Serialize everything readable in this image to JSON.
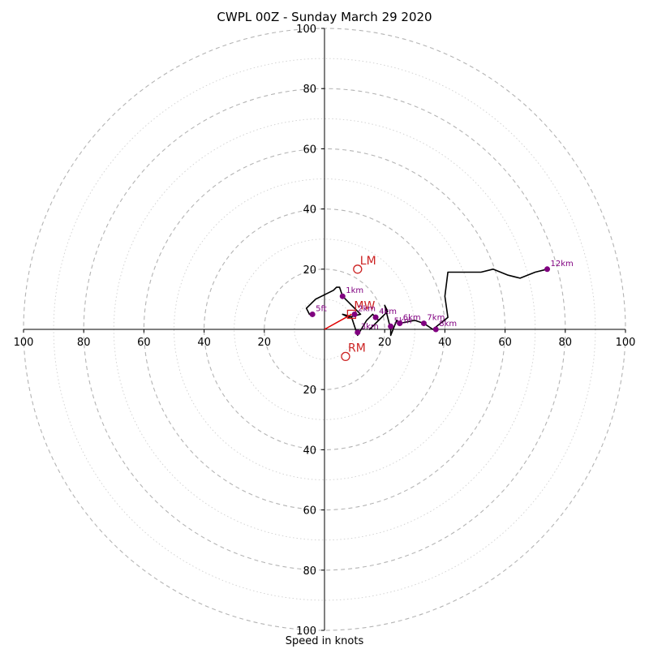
{
  "chart_data": {
    "type": "scatter",
    "chart_kind": "hodograph",
    "title": "CWPL 00Z - Sunday March 29 2020",
    "xlabel": "Speed in knots",
    "ylabel": "",
    "xlim": [
      -100,
      100
    ],
    "ylim": [
      -100,
      100
    ],
    "grid": true,
    "ring_labels": [
      20,
      40,
      60,
      80,
      100
    ],
    "x_tick_labels": [
      "100",
      "80",
      "60",
      "40",
      "20",
      "20",
      "40",
      "60",
      "80",
      "100"
    ],
    "y_tick_labels": [
      "100",
      "80",
      "60",
      "40",
      "20",
      "20",
      "40",
      "60",
      "80",
      "100"
    ],
    "hodograph_line": {
      "color": "#000000",
      "points": [
        [
          -6,
          7
        ],
        [
          -5,
          5
        ],
        [
          -6,
          7
        ],
        [
          -3,
          10
        ],
        [
          3,
          13
        ],
        [
          4,
          14
        ],
        [
          5,
          14
        ],
        [
          6,
          11
        ],
        [
          8,
          9
        ],
        [
          10,
          7
        ],
        [
          12,
          5
        ],
        [
          8,
          4
        ],
        [
          6,
          5
        ],
        [
          8,
          4.5
        ],
        [
          9,
          4
        ],
        [
          11,
          -2
        ],
        [
          14,
          3
        ],
        [
          16,
          5
        ],
        [
          18,
          3
        ],
        [
          20,
          5
        ],
        [
          15,
          0
        ],
        [
          19,
          4
        ],
        [
          21,
          6
        ],
        [
          20,
          8
        ],
        [
          21,
          4
        ],
        [
          22,
          0
        ],
        [
          22,
          -2
        ],
        [
          24,
          3
        ],
        [
          25,
          2
        ],
        [
          30,
          3
        ],
        [
          33,
          2
        ],
        [
          36,
          0
        ],
        [
          41,
          4
        ],
        [
          40,
          11
        ],
        [
          41,
          19
        ],
        [
          50,
          19
        ],
        [
          52,
          19
        ],
        [
          56,
          20
        ],
        [
          61,
          18
        ],
        [
          65,
          17
        ],
        [
          70,
          19
        ],
        [
          74,
          20
        ]
      ]
    },
    "height_markers": {
      "color": "#800080",
      "points": [
        {
          "label": "5ft",
          "x": -4,
          "y": 5
        },
        {
          "label": "1km",
          "x": 6,
          "y": 11
        },
        {
          "label": "2km",
          "x": 10,
          "y": 5
        },
        {
          "label": "3km",
          "x": 11,
          "y": -1
        },
        {
          "label": "4km",
          "x": 17,
          "y": 4
        },
        {
          "label": "5km",
          "x": 22,
          "y": 1
        },
        {
          "label": "6km",
          "x": 25,
          "y": 2
        },
        {
          "label": "7km",
          "x": 33,
          "y": 2
        },
        {
          "label": "8km",
          "x": 37,
          "y": 0
        },
        {
          "label": "12km",
          "x": 74,
          "y": 20
        }
      ]
    },
    "storm_motion": {
      "color": "#cc2222",
      "points": [
        {
          "label": "LM",
          "x": 11,
          "y": 20
        },
        {
          "label": "MW",
          "x": 9,
          "y": 5
        },
        {
          "label": "RM",
          "x": 7,
          "y": -9
        }
      ],
      "vector": {
        "from": [
          0,
          0
        ],
        "to": [
          9,
          5
        ]
      }
    }
  }
}
